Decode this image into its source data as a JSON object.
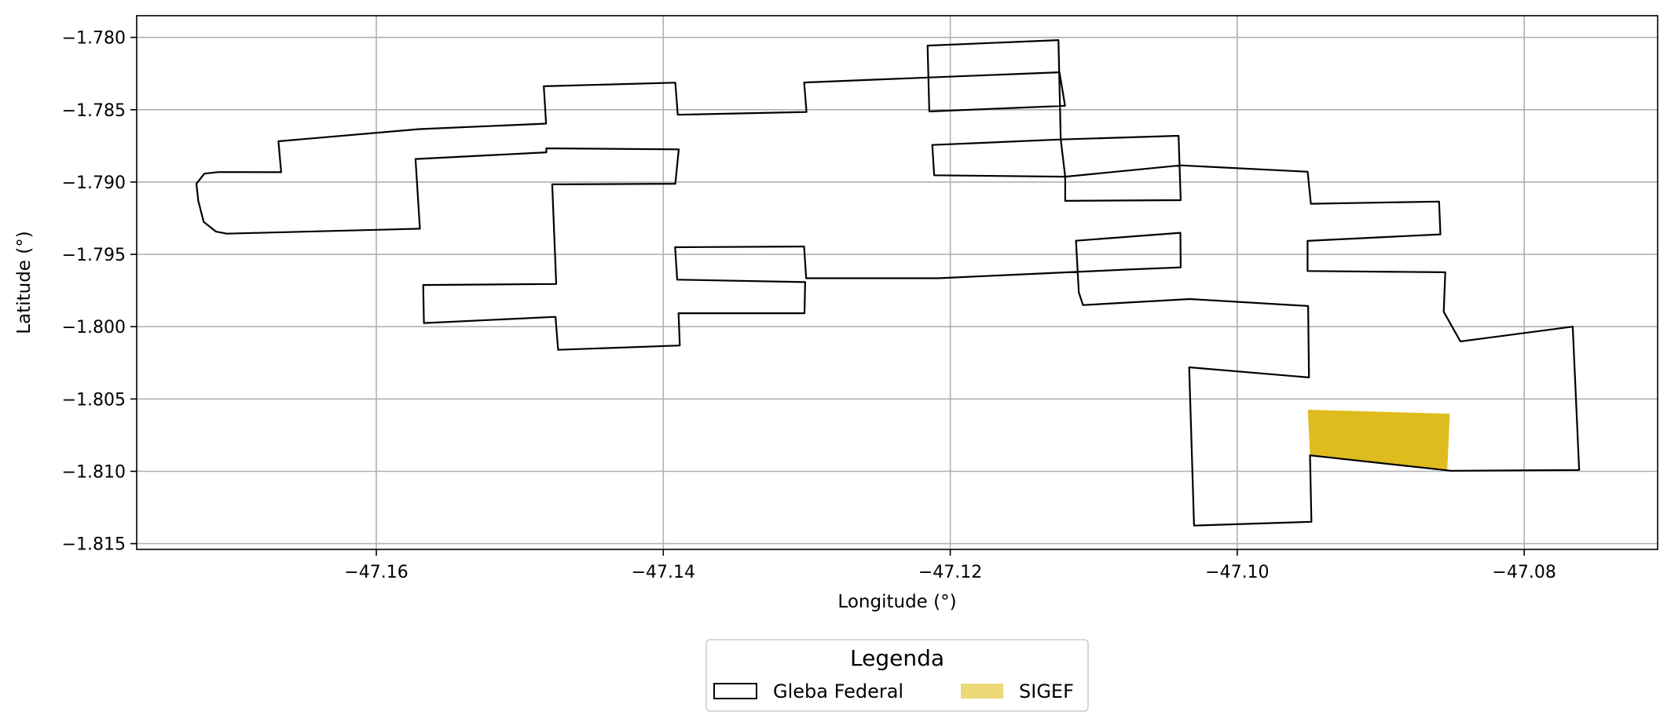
{
  "chart_data": {
    "type": "map",
    "xlabel": "Longitude (°)",
    "ylabel": "Latitude (°)",
    "xlim": [
      -47.1767,
      -47.0707
    ],
    "ylim": [
      -1.8154,
      -1.7785
    ],
    "grid": true,
    "x_ticks": [
      {
        "value": -47.16,
        "label": "−47.16"
      },
      {
        "value": -47.14,
        "label": "−47.14"
      },
      {
        "value": -47.12,
        "label": "−47.12"
      },
      {
        "value": -47.1,
        "label": "−47.10"
      },
      {
        "value": -47.08,
        "label": "−47.08"
      }
    ],
    "y_ticks": [
      {
        "value": -1.78,
        "label": "−1.780"
      },
      {
        "value": -1.785,
        "label": "−1.785"
      },
      {
        "value": -1.79,
        "label": "−1.790"
      },
      {
        "value": -1.795,
        "label": "−1.795"
      },
      {
        "value": -1.8,
        "label": "−1.800"
      },
      {
        "value": -1.805,
        "label": "−1.805"
      },
      {
        "value": -1.81,
        "label": "−1.810"
      },
      {
        "value": -1.815,
        "label": "−1.815"
      }
    ],
    "colors": {
      "gleba_stroke": "#000000",
      "sigef_fill": "#dfbc1e",
      "sigef_legend": "#ecd877",
      "grid": "#b0b0b0"
    },
    "legend": {
      "title": "Legenda",
      "placement": "bottom-center",
      "entries": [
        {
          "label": "Gleba Federal",
          "style": "outline"
        },
        {
          "label": "SIGEF",
          "style": "filled"
        }
      ]
    },
    "series": [
      {
        "name": "Gleba Federal",
        "geometry": "polygon-outline",
        "coordinates": [
          [
            -47.17198,
            -1.78942
          ],
          [
            -47.17098,
            -1.78931
          ],
          [
            -47.16663,
            -1.78932
          ],
          [
            -47.16682,
            -1.78718
          ],
          [
            -47.157,
            -1.78634
          ],
          [
            -47.14817,
            -1.78596
          ],
          [
            -47.14833,
            -1.78338
          ],
          [
            -47.13916,
            -1.78313
          ],
          [
            -47.13899,
            -1.78535
          ],
          [
            -47.13002,
            -1.78516
          ],
          [
            -47.13018,
            -1.78312
          ],
          [
            -47.11239,
            -1.78241
          ],
          [
            -47.112,
            -1.78473
          ],
          [
            -47.12146,
            -1.78512
          ],
          [
            -47.12158,
            -1.78057
          ],
          [
            -47.11246,
            -1.78019
          ],
          [
            -47.1123,
            -1.78706
          ],
          [
            -47.10409,
            -1.7868
          ],
          [
            -47.10394,
            -1.79125
          ],
          [
            -47.11199,
            -1.7913
          ],
          [
            -47.11199,
            -1.78963
          ],
          [
            -47.12112,
            -1.78953
          ],
          [
            -47.12125,
            -1.78744
          ],
          [
            -47.1123,
            -1.78706
          ],
          [
            -47.11199,
            -1.78963
          ],
          [
            -47.10394,
            -1.78885
          ],
          [
            -47.09509,
            -1.78929
          ],
          [
            -47.09487,
            -1.7915
          ],
          [
            -47.08593,
            -1.79135
          ],
          [
            -47.08584,
            -1.79362
          ],
          [
            -47.0951,
            -1.79407
          ],
          [
            -47.0951,
            -1.79615
          ],
          [
            -47.0855,
            -1.79624
          ],
          [
            -47.08561,
            -1.79897
          ],
          [
            -47.08445,
            -1.80102
          ],
          [
            -47.07662,
            -1.8
          ],
          [
            -47.07617,
            -1.80991
          ],
          [
            -47.0851,
            -1.80996
          ],
          [
            -47.09493,
            -1.8089
          ],
          [
            -47.09483,
            -1.81349
          ],
          [
            -47.10301,
            -1.81375
          ],
          [
            -47.10335,
            -1.80281
          ],
          [
            -47.095,
            -1.80351
          ],
          [
            -47.09506,
            -1.79857
          ],
          [
            -47.1033,
            -1.79809
          ],
          [
            -47.11075,
            -1.79851
          ],
          [
            -47.11104,
            -1.79763
          ],
          [
            -47.11124,
            -1.79406
          ],
          [
            -47.10396,
            -1.79351
          ],
          [
            -47.10394,
            -1.7959
          ],
          [
            -47.1076,
            -1.79605
          ],
          [
            -47.12087,
            -1.79665
          ],
          [
            -47.13004,
            -1.79665
          ],
          [
            -47.13019,
            -1.79446
          ],
          [
            -47.13918,
            -1.79451
          ],
          [
            -47.13903,
            -1.79675
          ],
          [
            -47.13011,
            -1.79692
          ],
          [
            -47.13016,
            -1.79907
          ],
          [
            -47.13894,
            -1.79907
          ],
          [
            -47.13885,
            -1.8013
          ],
          [
            -47.14733,
            -1.8016
          ],
          [
            -47.14751,
            -1.79932
          ],
          [
            -47.15668,
            -1.79975
          ],
          [
            -47.15673,
            -1.79712
          ],
          [
            -47.14746,
            -1.79705
          ],
          [
            -47.14774,
            -1.79016
          ],
          [
            -47.13916,
            -1.79012
          ],
          [
            -47.13892,
            -1.78774
          ],
          [
            -47.14815,
            -1.78767
          ],
          [
            -47.14815,
            -1.78795
          ],
          [
            -47.15727,
            -1.78841
          ],
          [
            -47.15696,
            -1.79323
          ],
          [
            -47.17043,
            -1.79357
          ],
          [
            -47.17117,
            -1.79343
          ],
          [
            -47.17203,
            -1.79276
          ],
          [
            -47.17241,
            -1.7913
          ],
          [
            -47.17254,
            -1.79012
          ]
        ]
      },
      {
        "name": "SIGEF",
        "geometry": "polygon-filled",
        "coordinates": [
          [
            -47.09508,
            -1.80574
          ],
          [
            -47.08519,
            -1.80602
          ],
          [
            -47.08536,
            -1.80996
          ],
          [
            -47.09493,
            -1.8089
          ]
        ]
      }
    ]
  }
}
